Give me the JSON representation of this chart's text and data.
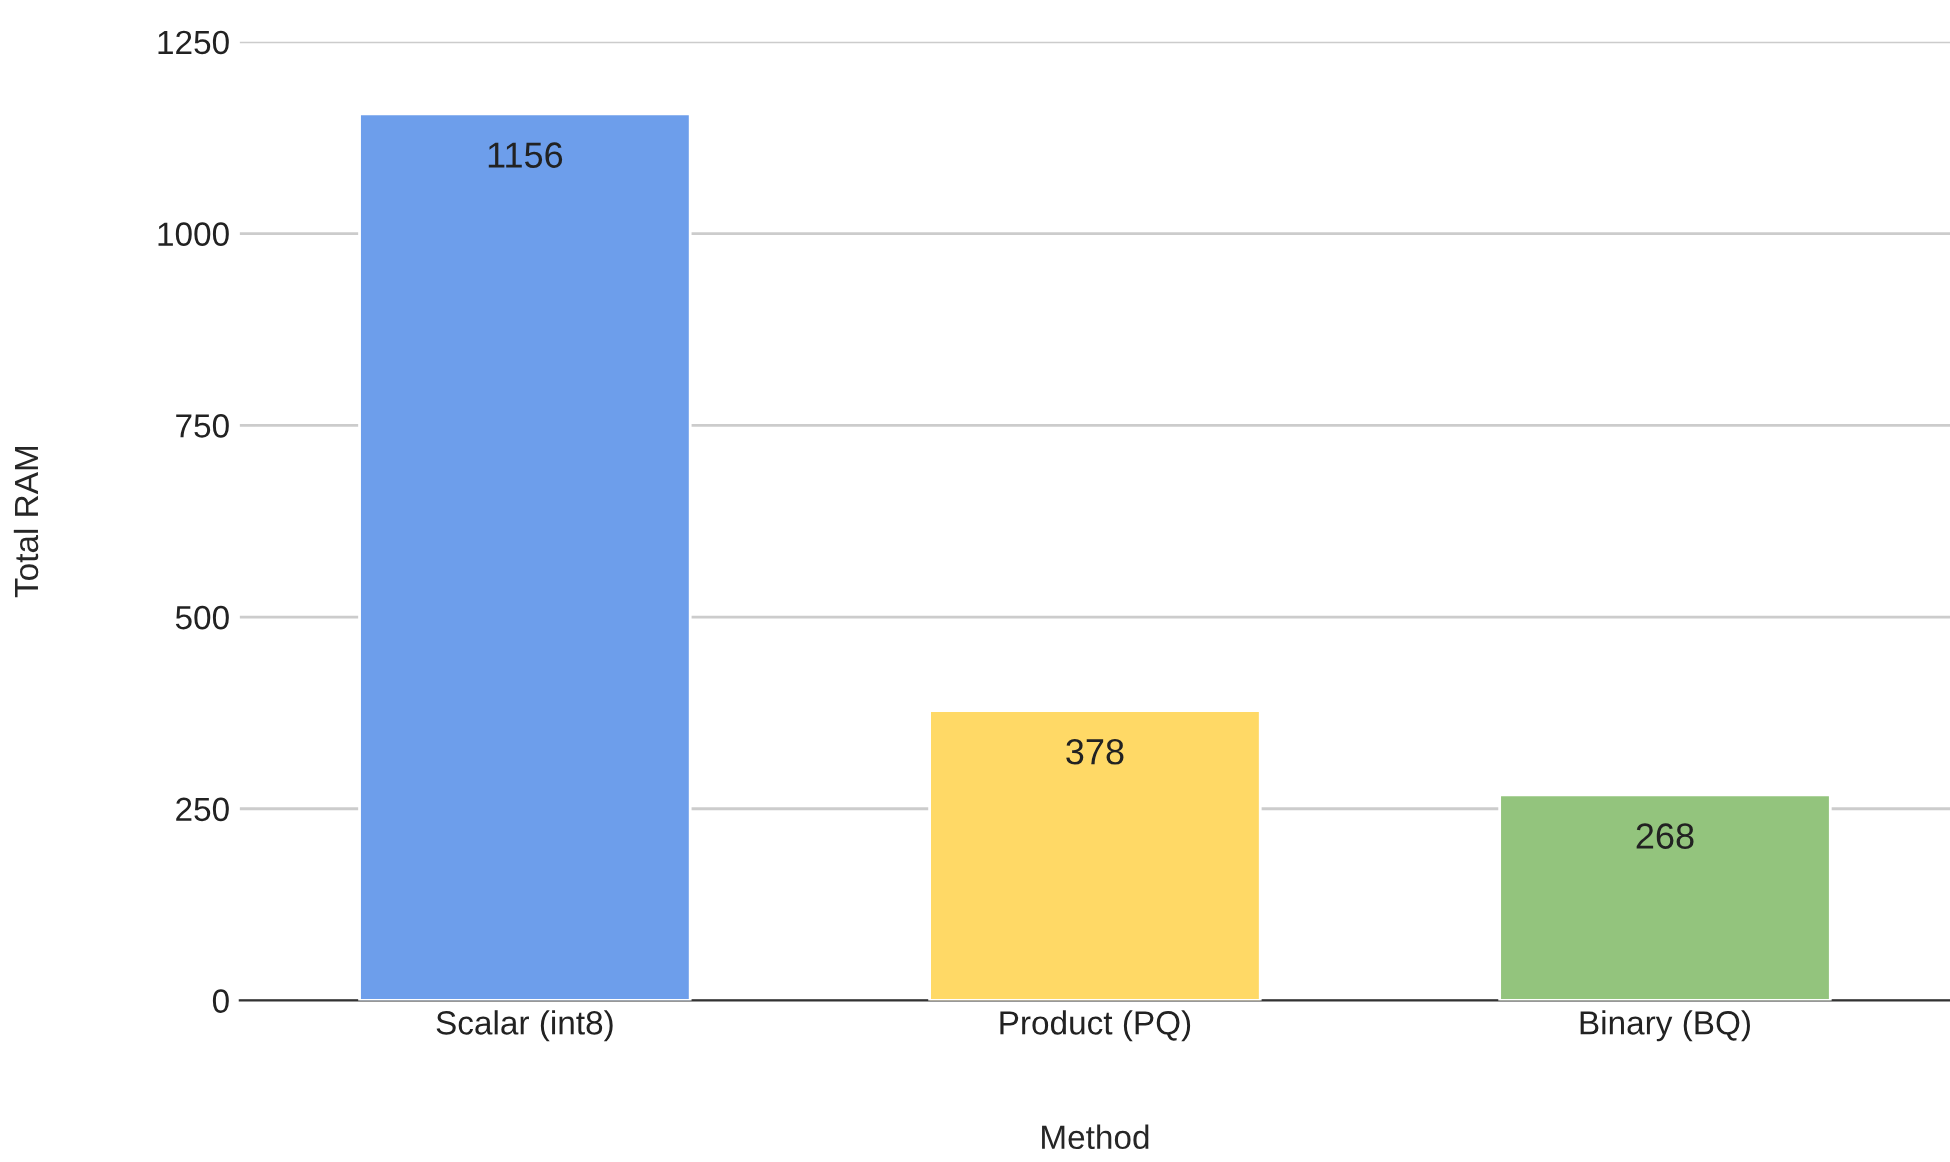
{
  "chart_data": {
    "type": "bar",
    "xlabel": "Method",
    "ylabel": "Total RAM",
    "categories": [
      "Scalar (int8)",
      "Product (PQ)",
      "Binary (BQ)"
    ],
    "values": [
      1156,
      378,
      268
    ],
    "colors": [
      "#6d9eeb",
      "#ffd966",
      "#93c47d"
    ],
    "ylim": [
      0,
      1250
    ],
    "yticks": [
      0,
      250,
      500,
      750,
      1000,
      1250
    ],
    "grid": "y",
    "data_labels": true
  }
}
